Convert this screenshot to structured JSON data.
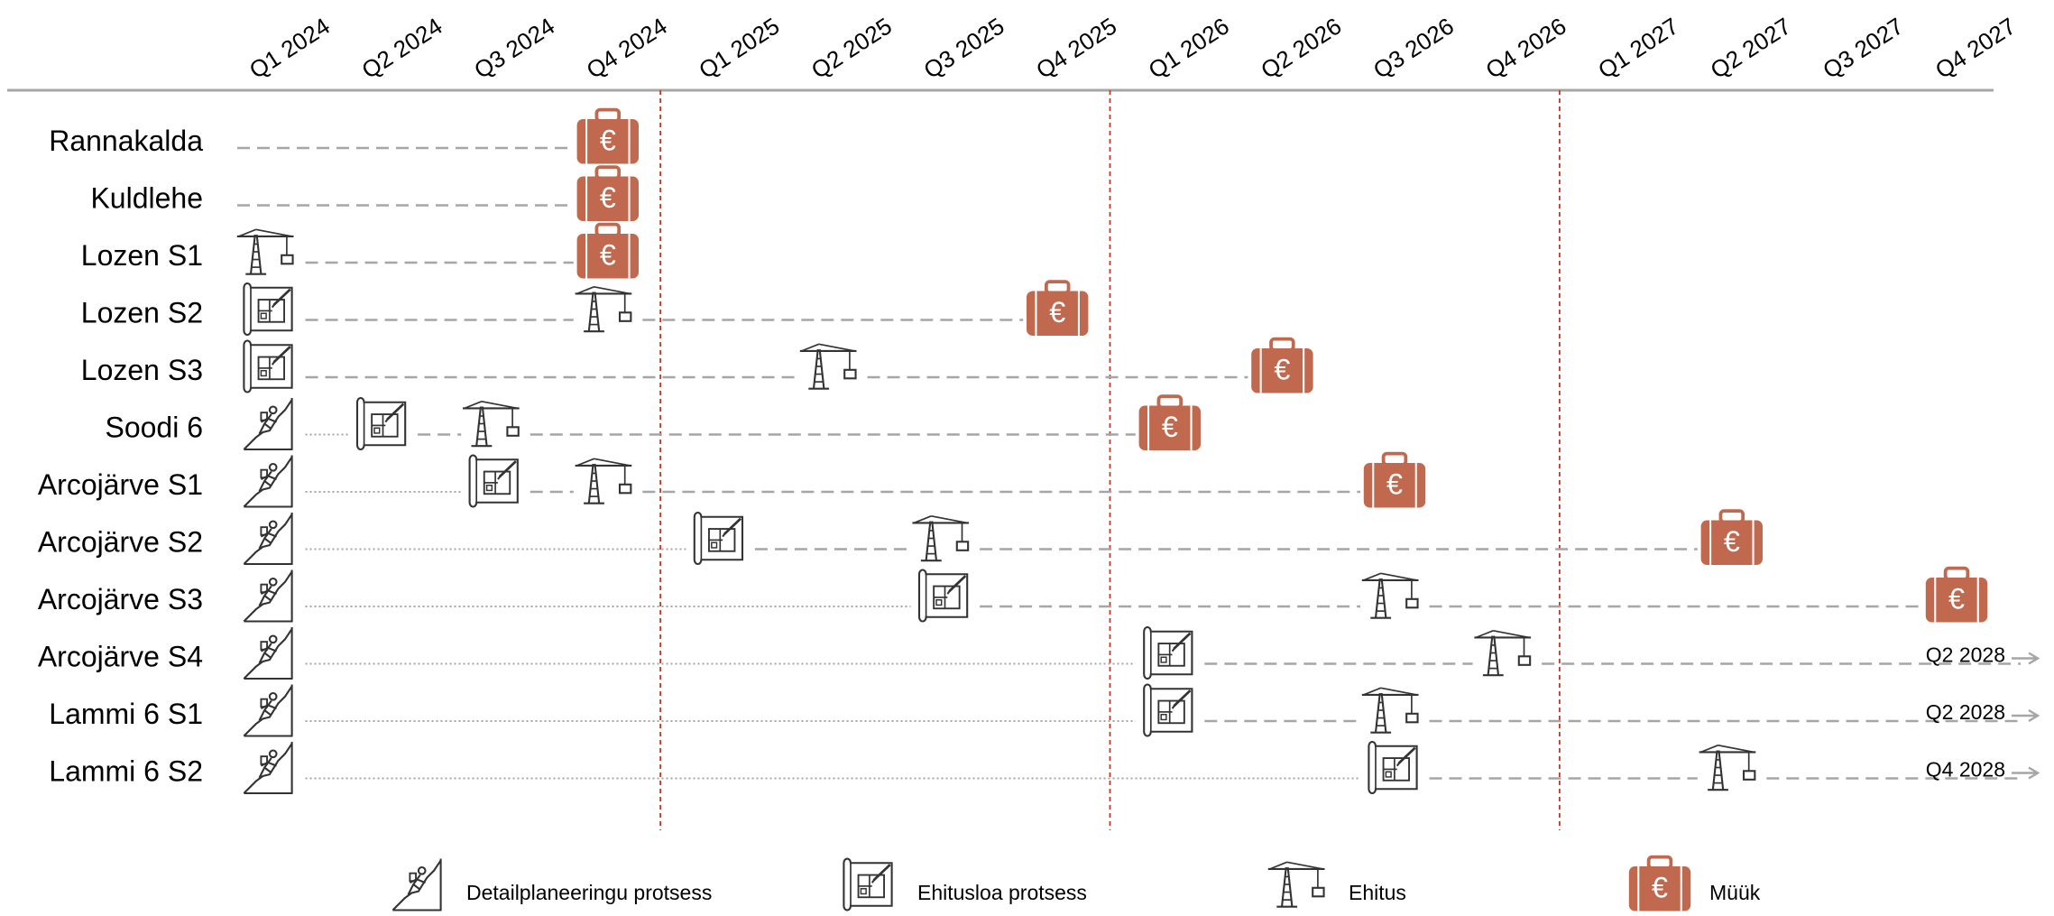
{
  "quarters": [
    "Q1 2024",
    "Q2 2024",
    "Q3 2024",
    "Q4 2024",
    "Q1 2025",
    "Q2 2025",
    "Q3 2025",
    "Q4 2025",
    "Q1 2026",
    "Q2 2026",
    "Q3 2026",
    "Q4 2026",
    "Q1 2027",
    "Q2 2027",
    "Q3 2027",
    "Q4 2027"
  ],
  "year_dividers_after_quarter": [
    3,
    7,
    11
  ],
  "colors": {
    "sale": "#C0694F",
    "line": "#A6A6A6",
    "divider": "#C0392B",
    "icon": "#333333",
    "axis": "#A6A6A6"
  },
  "projects": [
    {
      "name": "Rannakalda",
      "segments": [
        {
          "from": 0.0,
          "to": 3.0,
          "style": "dashed"
        }
      ],
      "milestones": [
        {
          "type": "sale",
          "q": 3.0
        }
      ]
    },
    {
      "name": "Kuldlehe",
      "segments": [
        {
          "from": 0.0,
          "to": 3.0,
          "style": "dashed"
        }
      ],
      "milestones": [
        {
          "type": "sale",
          "q": 3.0
        }
      ]
    },
    {
      "name": "Lozen S1",
      "segments": [
        {
          "from": 0.55,
          "to": 3.0,
          "style": "dashed"
        }
      ],
      "milestones": [
        {
          "type": "construction",
          "q": 0.0
        },
        {
          "type": "sale",
          "q": 3.0
        }
      ]
    },
    {
      "name": "Lozen S2",
      "segments": [
        {
          "from": 0.55,
          "to": 3.0,
          "style": "dashed"
        },
        {
          "from": 3.55,
          "to": 7.0,
          "style": "dashed"
        }
      ],
      "milestones": [
        {
          "type": "permit",
          "q": 0.0
        },
        {
          "type": "construction",
          "q": 3.0
        },
        {
          "type": "sale",
          "q": 7.0
        }
      ]
    },
    {
      "name": "Lozen S3",
      "segments": [
        {
          "from": 0.55,
          "to": 5.0,
          "style": "dashed"
        },
        {
          "from": 5.55,
          "to": 9.0,
          "style": "dashed"
        }
      ],
      "milestones": [
        {
          "type": "permit",
          "q": 0.0
        },
        {
          "type": "construction",
          "q": 5.0
        },
        {
          "type": "sale",
          "q": 9.0
        }
      ]
    },
    {
      "name": "Soodi 6",
      "segments": [
        {
          "from": 0.55,
          "to": 1.0,
          "style": "dotted"
        },
        {
          "from": 1.55,
          "to": 2.0,
          "style": "dashed"
        },
        {
          "from": 2.55,
          "to": 8.0,
          "style": "dashed"
        }
      ],
      "milestones": [
        {
          "type": "planning",
          "q": 0.0
        },
        {
          "type": "permit",
          "q": 1.0
        },
        {
          "type": "construction",
          "q": 2.0
        },
        {
          "type": "sale",
          "q": 8.0
        }
      ]
    },
    {
      "name": "Arcojärve S1",
      "segments": [
        {
          "from": 0.55,
          "to": 2.0,
          "style": "dotted"
        },
        {
          "from": 2.55,
          "to": 3.0,
          "style": "dashed"
        },
        {
          "from": 3.55,
          "to": 10.0,
          "style": "dashed"
        }
      ],
      "milestones": [
        {
          "type": "planning",
          "q": 0.0
        },
        {
          "type": "permit",
          "q": 2.0
        },
        {
          "type": "construction",
          "q": 3.0
        },
        {
          "type": "sale",
          "q": 10.0
        }
      ]
    },
    {
      "name": "Arcojärve S2",
      "segments": [
        {
          "from": 0.55,
          "to": 4.0,
          "style": "dotted"
        },
        {
          "from": 4.55,
          "to": 6.0,
          "style": "dashed"
        },
        {
          "from": 6.55,
          "to": 13.0,
          "style": "dashed"
        }
      ],
      "milestones": [
        {
          "type": "planning",
          "q": 0.0
        },
        {
          "type": "permit",
          "q": 4.0
        },
        {
          "type": "construction",
          "q": 6.0
        },
        {
          "type": "sale",
          "q": 13.0
        }
      ]
    },
    {
      "name": "Arcojärve S3",
      "segments": [
        {
          "from": 0.55,
          "to": 6.0,
          "style": "dotted"
        },
        {
          "from": 6.55,
          "to": 10.0,
          "style": "dashed"
        },
        {
          "from": 10.55,
          "to": 15.0,
          "style": "dashed"
        }
      ],
      "milestones": [
        {
          "type": "planning",
          "q": 0.0
        },
        {
          "type": "permit",
          "q": 6.0
        },
        {
          "type": "construction",
          "q": 10.0
        },
        {
          "type": "sale",
          "q": 15.0
        }
      ]
    },
    {
      "name": "Arcojärve S4",
      "end_label": "Q2 2028",
      "segments": [
        {
          "from": 0.55,
          "to": 8.0,
          "style": "dotted"
        },
        {
          "from": 8.55,
          "to": 11.0,
          "style": "dashed"
        },
        {
          "from": 11.55,
          "to": 15.4,
          "style": "dashed"
        }
      ],
      "milestones": [
        {
          "type": "planning",
          "q": 0.0
        },
        {
          "type": "permit",
          "q": 8.0
        },
        {
          "type": "construction",
          "q": 11.0
        }
      ]
    },
    {
      "name": "Lammi 6 S1",
      "end_label": "Q2 2028",
      "segments": [
        {
          "from": 0.55,
          "to": 8.0,
          "style": "dotted"
        },
        {
          "from": 8.55,
          "to": 10.0,
          "style": "dashed"
        },
        {
          "from": 10.55,
          "to": 15.4,
          "style": "dashed"
        }
      ],
      "milestones": [
        {
          "type": "planning",
          "q": 0.0
        },
        {
          "type": "permit",
          "q": 8.0
        },
        {
          "type": "construction",
          "q": 10.0
        }
      ]
    },
    {
      "name": "Lammi 6 S2",
      "end_label": "Q4 2028",
      "segments": [
        {
          "from": 0.55,
          "to": 10.0,
          "style": "dotted"
        },
        {
          "from": 10.55,
          "to": 13.0,
          "style": "dashed"
        },
        {
          "from": 13.55,
          "to": 15.4,
          "style": "dashed"
        }
      ],
      "milestones": [
        {
          "type": "planning",
          "q": 0.0
        },
        {
          "type": "permit",
          "q": 10.0
        },
        {
          "type": "construction",
          "q": 13.0
        }
      ]
    }
  ],
  "legend": [
    {
      "type": "planning",
      "label": "Detailplaneeringu protsess"
    },
    {
      "type": "permit",
      "label": "Ehitusloa protsess"
    },
    {
      "type": "construction",
      "label": "Ehitus"
    },
    {
      "type": "sale",
      "label": "Müük"
    }
  ]
}
